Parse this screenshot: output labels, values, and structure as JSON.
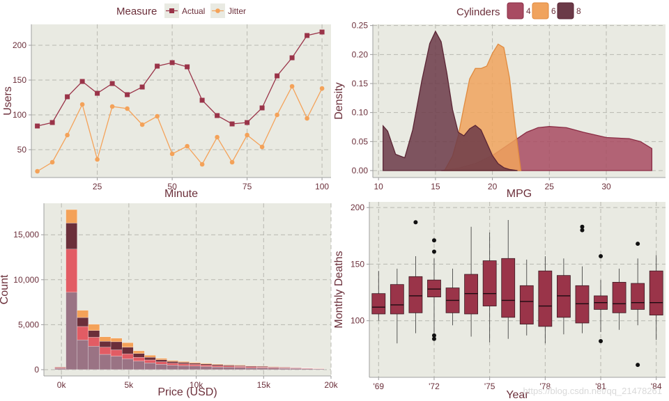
{
  "colors": {
    "panel_bg": "#e9eae2",
    "grid": "#b8b8b0",
    "actual": "#9a3449",
    "jitter": "#f4a259",
    "cyl4": "#a84b62",
    "cyl6": "#f0a35d",
    "cyl8": "#6b3a48",
    "hist_light": "#9a7384",
    "hist_red": "#e25c64",
    "hist_dark": "#6b2f3a",
    "hist_orange": "#f4a259",
    "box_fill": "#9a3449",
    "text": "#6b2f3a"
  },
  "watermark": "https://blog.csdn.net/qq_21478261",
  "chart_data": [
    {
      "type": "line",
      "xlabel": "Minute",
      "ylabel": "Users",
      "xlim": [
        3,
        103
      ],
      "ylim": [
        10,
        230
      ],
      "x_ticks": [
        25,
        50,
        75,
        100
      ],
      "y_ticks": [
        50,
        100,
        150,
        200
      ],
      "legend_title": "Measure",
      "legend_position": "top",
      "grid": true,
      "x": [
        5,
        10,
        15,
        20,
        25,
        30,
        35,
        40,
        45,
        50,
        55,
        60,
        65,
        70,
        75,
        80,
        85,
        90,
        95,
        100
      ],
      "series": [
        {
          "name": "Actual",
          "marker": "square",
          "values": [
            84,
            89,
            126,
            148,
            131,
            145,
            129,
            140,
            170,
            175,
            169,
            121,
            99,
            87,
            89,
            110,
            156,
            182,
            214,
            219
          ]
        },
        {
          "name": "Jitter",
          "marker": "circle",
          "values": [
            19,
            32,
            71,
            115,
            36,
            112,
            109,
            86,
            98,
            44,
            55,
            29,
            68,
            32,
            71,
            54,
            100,
            141,
            95,
            138
          ]
        }
      ]
    },
    {
      "type": "area",
      "subtype": "density",
      "xlabel": "MPG",
      "ylabel": "Density",
      "xlim": [
        9.5,
        35.2
      ],
      "ylim": [
        -0.012,
        0.252
      ],
      "x_ticks": [
        10,
        15,
        20,
        25,
        30
      ],
      "y_ticks": [
        0,
        0.05,
        0.1,
        0.15,
        0.2,
        0.25
      ],
      "y_tick_labels": [
        "0.00",
        "0.05",
        "0.10",
        "0.15",
        "0.20",
        "0.25"
      ],
      "legend_title": "Cylinders",
      "legend_position": "top",
      "grid": true,
      "series": [
        {
          "name": "4",
          "x": [
            15.5,
            17,
            18.5,
            20,
            21.5,
            23,
            24,
            25,
            26.5,
            28,
            30,
            32,
            33,
            34
          ],
          "y": [
            0.0,
            0.004,
            0.012,
            0.026,
            0.046,
            0.066,
            0.074,
            0.076,
            0.074,
            0.066,
            0.057,
            0.055,
            0.05,
            0.038
          ]
        },
        {
          "name": "6",
          "x": [
            15.8,
            16.5,
            17,
            17.5,
            18,
            18.5,
            19,
            19.5,
            20,
            20.5,
            21,
            21.5,
            22,
            22.5
          ],
          "y": [
            0.0,
            0.025,
            0.06,
            0.11,
            0.158,
            0.176,
            0.176,
            0.18,
            0.202,
            0.218,
            0.212,
            0.16,
            0.075,
            0.0
          ]
        },
        {
          "name": "8",
          "x": [
            10.4,
            10.8,
            11.5,
            12.3,
            13,
            13.8,
            14.5,
            15,
            15.5,
            16,
            16.5,
            17,
            17.5,
            18,
            18.5,
            19,
            19.5,
            20,
            20.5,
            21,
            21.5,
            22.2
          ],
          "y": [
            0.077,
            0.068,
            0.028,
            0.022,
            0.07,
            0.155,
            0.219,
            0.24,
            0.222,
            0.168,
            0.105,
            0.066,
            0.06,
            0.072,
            0.078,
            0.07,
            0.048,
            0.026,
            0.012,
            0.005,
            0.002,
            0.0
          ]
        }
      ]
    },
    {
      "type": "bar",
      "subtype": "stacked-histogram",
      "xlabel": "Price (USD)",
      "ylabel": "Count",
      "xlim": [
        -1300,
        20000
      ],
      "ylim": [
        -700,
        18500
      ],
      "x_ticks": [
        0,
        5000,
        10000,
        15000,
        20000
      ],
      "x_tick_labels": [
        "0k",
        "5k",
        "10k",
        "15k",
        "20k"
      ],
      "y_ticks": [
        0,
        5000,
        10000,
        15000
      ],
      "y_tick_labels": [
        "0",
        "5,000",
        "10,000",
        "15,000"
      ],
      "grid": true,
      "bin_starts": [
        -500,
        333,
        1166,
        1999,
        2832,
        3665,
        4498,
        5331,
        6164,
        6997,
        7830,
        8663,
        9496,
        10329,
        11162,
        11995,
        12828,
        13661,
        14494,
        15327,
        16160,
        16993,
        17826,
        18659
      ],
      "bin_width": 833,
      "series": [
        {
          "name": "",
          "values": [
            150,
            8600,
            3300,
            2600,
            1700,
            1500,
            1200,
            950,
            750,
            600,
            500,
            450,
            400,
            350,
            300,
            280,
            250,
            220,
            200,
            170,
            150,
            130,
            110,
            80
          ]
        },
        {
          "name": "",
          "values": [
            80,
            4800,
            1500,
            1000,
            800,
            700,
            550,
            420,
            330,
            270,
            220,
            200,
            180,
            160,
            140,
            120,
            110,
            100,
            90,
            80,
            70,
            60,
            50,
            40
          ]
        },
        {
          "name": "",
          "values": [
            50,
            2900,
            1000,
            750,
            650,
            900,
            750,
            420,
            300,
            240,
            180,
            160,
            140,
            120,
            110,
            100,
            90,
            80,
            70,
            60,
            50,
            40,
            30,
            20
          ]
        },
        {
          "name": "",
          "values": [
            30,
            1500,
            800,
            700,
            500,
            400,
            500,
            300,
            220,
            150,
            110,
            100,
            90,
            80,
            70,
            60,
            55,
            50,
            45,
            40,
            35,
            30,
            25,
            20
          ]
        }
      ]
    },
    {
      "type": "box",
      "xlabel": "Year",
      "ylabel": "Monthly Deaths",
      "xlim": [
        1968.5,
        1984.5
      ],
      "ylim": [
        50,
        205
      ],
      "x_ticks": [
        1969,
        1972,
        1975,
        1978,
        1981,
        1984
      ],
      "x_tick_labels": [
        "'69",
        "'72",
        "'75",
        "'78",
        "'81",
        "'84"
      ],
      "y_ticks": [
        100,
        150,
        200
      ],
      "grid": true,
      "boxes": [
        {
          "year": 1969,
          "whislo": 100,
          "q1": 106,
          "med": 112,
          "q3": 124,
          "whishi": 144,
          "fliers": []
        },
        {
          "year": 1970,
          "whislo": 80,
          "q1": 106,
          "med": 114,
          "q3": 132,
          "whishi": 146,
          "fliers": []
        },
        {
          "year": 1971,
          "whislo": 89,
          "q1": 107,
          "med": 122,
          "q3": 139,
          "whishi": 157,
          "fliers": [
            187
          ]
        },
        {
          "year": 1972,
          "whislo": 89,
          "q1": 121,
          "med": 128,
          "q3": 136,
          "whishi": 155,
          "fliers": [
            171,
            161,
            87,
            84
          ]
        },
        {
          "year": 1973,
          "whislo": 96,
          "q1": 107,
          "med": 118,
          "q3": 129,
          "whishi": 146,
          "fliers": []
        },
        {
          "year": 1974,
          "whislo": 86,
          "q1": 106,
          "med": 124,
          "q3": 141,
          "whishi": 183,
          "fliers": []
        },
        {
          "year": 1975,
          "whislo": 81,
          "q1": 113,
          "med": 124,
          "q3": 153,
          "whishi": 178,
          "fliers": []
        },
        {
          "year": 1976,
          "whislo": 84,
          "q1": 103,
          "med": 118,
          "q3": 155,
          "whishi": 189,
          "fliers": []
        },
        {
          "year": 1977,
          "whislo": 87,
          "q1": 97,
          "med": 117,
          "q3": 131,
          "whishi": 154,
          "fliers": []
        },
        {
          "year": 1978,
          "whislo": 80,
          "q1": 95,
          "med": 113,
          "q3": 144,
          "whishi": 157,
          "fliers": []
        },
        {
          "year": 1979,
          "whislo": 88,
          "q1": 103,
          "med": 122,
          "q3": 140,
          "whishi": 155,
          "fliers": []
        },
        {
          "year": 1980,
          "whislo": 89,
          "q1": 98,
          "med": 115,
          "q3": 131,
          "whishi": 148,
          "fliers": [
            183,
            180
          ]
        },
        {
          "year": 1981,
          "whislo": 90,
          "q1": 110,
          "med": 116,
          "q3": 122,
          "whishi": 136,
          "fliers": [
            157,
            82
          ]
        },
        {
          "year": 1982,
          "whislo": 92,
          "q1": 107,
          "med": 115,
          "q3": 134,
          "whishi": 146,
          "fliers": []
        },
        {
          "year": 1983,
          "whislo": 96,
          "q1": 110,
          "med": 116,
          "q3": 133,
          "whishi": 155,
          "fliers": [
            168,
            61
          ]
        },
        {
          "year": 1984,
          "whislo": 83,
          "q1": 105,
          "med": 116,
          "q3": 144,
          "whishi": 158,
          "fliers": []
        }
      ]
    }
  ]
}
